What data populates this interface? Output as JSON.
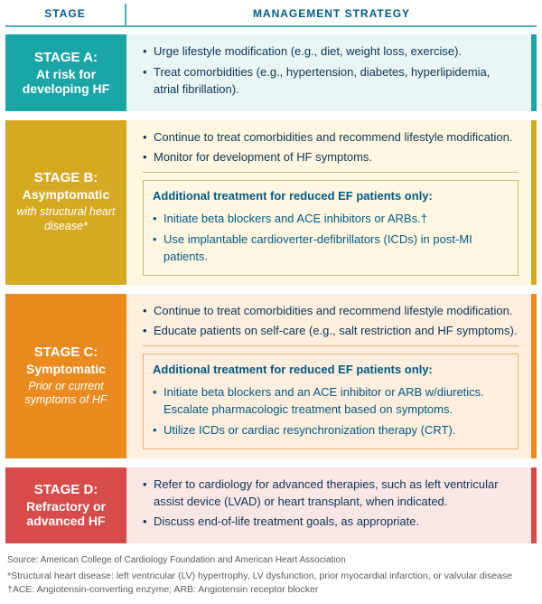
{
  "header": {
    "stage": "STAGE",
    "mgmt": "MANAGEMENT STRATEGY"
  },
  "stages": [
    {
      "id": "A",
      "title": "STAGE A:",
      "sub": "At risk for developing HF",
      "sub2": "",
      "label_bg": "#1aa6a6",
      "content_bg": "#eaf6f6",
      "border_right": "#1aa6a6",
      "bullets": [
        "Urge lifestyle modification (e.g., diet, weight loss, exercise).",
        "Treat comorbidities (e.g., hypertension, diabetes, hyperlipidemia, atrial fibrillation)."
      ],
      "sub_box": null
    },
    {
      "id": "B",
      "title": "STAGE B:",
      "sub": "Asymptomatic",
      "sub2": "with structural heart disease*",
      "label_bg": "#d6a923",
      "content_bg": "#fff7e0",
      "border_right": "#d6a923",
      "bullets": [
        "Continue to treat comorbidities and recommend lifestyle modification.",
        "Monitor for development of HF symptoms."
      ],
      "sub_box": {
        "heading": "Additional treatment for reduced EF patients only:",
        "box_border": "#c7b77a",
        "bullets": [
          "Initiate beta blockers and ACE inhibitors or ARBs.†",
          "Use implantable cardioverter-defibrillators (ICDs) in post-MI patients."
        ]
      }
    },
    {
      "id": "C",
      "title": "STAGE C:",
      "sub": "Symptomatic",
      "sub2": "Prior or current symptoms of HF",
      "label_bg": "#e98b1f",
      "content_bg": "#fdeedd",
      "border_right": "#e98b1f",
      "bullets": [
        "Continue to treat comorbidities and recommend lifestyle modification.",
        "Educate patients on self-care (e.g., salt restriction and HF symptoms)."
      ],
      "sub_box": {
        "heading": "Additional treatment for reduced EF patients only:",
        "box_border": "#e8b46a",
        "bullets": [
          "Initiate beta blockers and an ACE inhibitor or ARB w/diuretics. Escalate pharmacologic treatment based on symptoms.",
          "Utilize ICDs or cardiac resynchronization therapy (CRT)."
        ]
      }
    },
    {
      "id": "D",
      "title": "STAGE D:",
      "sub": "Refractory or advanced HF",
      "sub2": "",
      "label_bg": "#d84b4b",
      "content_bg": "#fbe6e6",
      "border_right": "#d84b4b",
      "bullets": [
        "Refer to cardiology for advanced therapies, such as left ventricular assist device (LVAD) or heart transplant, when indicated.",
        "Discuss end-of-life treatment goals, as appropriate."
      ],
      "sub_box": null
    }
  ],
  "footnotes": {
    "source": "Source: American College of Cardiology Foundation and American Heart Association",
    "fn1": "*Structural heart disease: left ventricular (LV) hypertrophy, LV dysfunction, prior myocardial infarction, or valvular disease",
    "fn2": "†ACE: Angiotensin-converting enzyme; ARB: Angiotensin receptor blocker"
  }
}
